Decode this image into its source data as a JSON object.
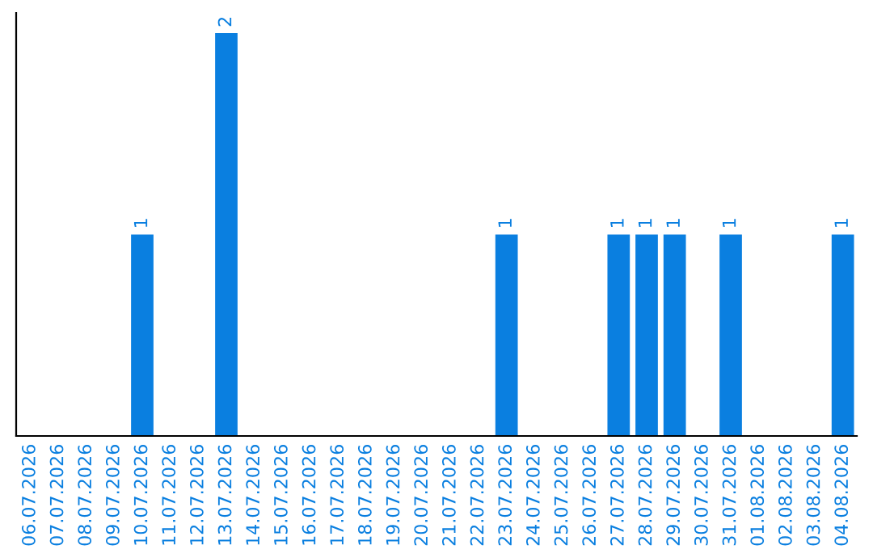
{
  "chart_data": {
    "type": "bar",
    "categories": [
      "06.07.2026",
      "07.07.2026",
      "08.07.2026",
      "09.07.2026",
      "10.07.2026",
      "11.07.2026",
      "12.07.2026",
      "13.07.2026",
      "14.07.2026",
      "15.07.2026",
      "16.07.2026",
      "17.07.2026",
      "18.07.2026",
      "19.07.2026",
      "20.07.2026",
      "21.07.2026",
      "22.07.2026",
      "23.07.2026",
      "24.07.2026",
      "25.07.2026",
      "26.07.2026",
      "27.07.2026",
      "28.07.2026",
      "29.07.2026",
      "30.07.2026",
      "31.07.2026",
      "01.08.2026",
      "02.08.2026",
      "03.08.2026",
      "04.08.2026"
    ],
    "values": [
      0,
      0,
      0,
      0,
      1,
      0,
      0,
      2,
      0,
      0,
      0,
      0,
      0,
      0,
      0,
      0,
      0,
      1,
      0,
      0,
      0,
      1,
      1,
      1,
      0,
      1,
      0,
      0,
      0,
      1
    ],
    "value_labels": [
      null,
      null,
      null,
      null,
      "1",
      null,
      null,
      "2",
      null,
      null,
      null,
      null,
      null,
      null,
      null,
      null,
      null,
      "1",
      null,
      null,
      null,
      "1",
      "1",
      "1",
      null,
      "1",
      null,
      null,
      null,
      "1"
    ],
    "color": "#0a7fe0",
    "tick_labels": "x",
    "grid": false,
    "legend": false
  }
}
